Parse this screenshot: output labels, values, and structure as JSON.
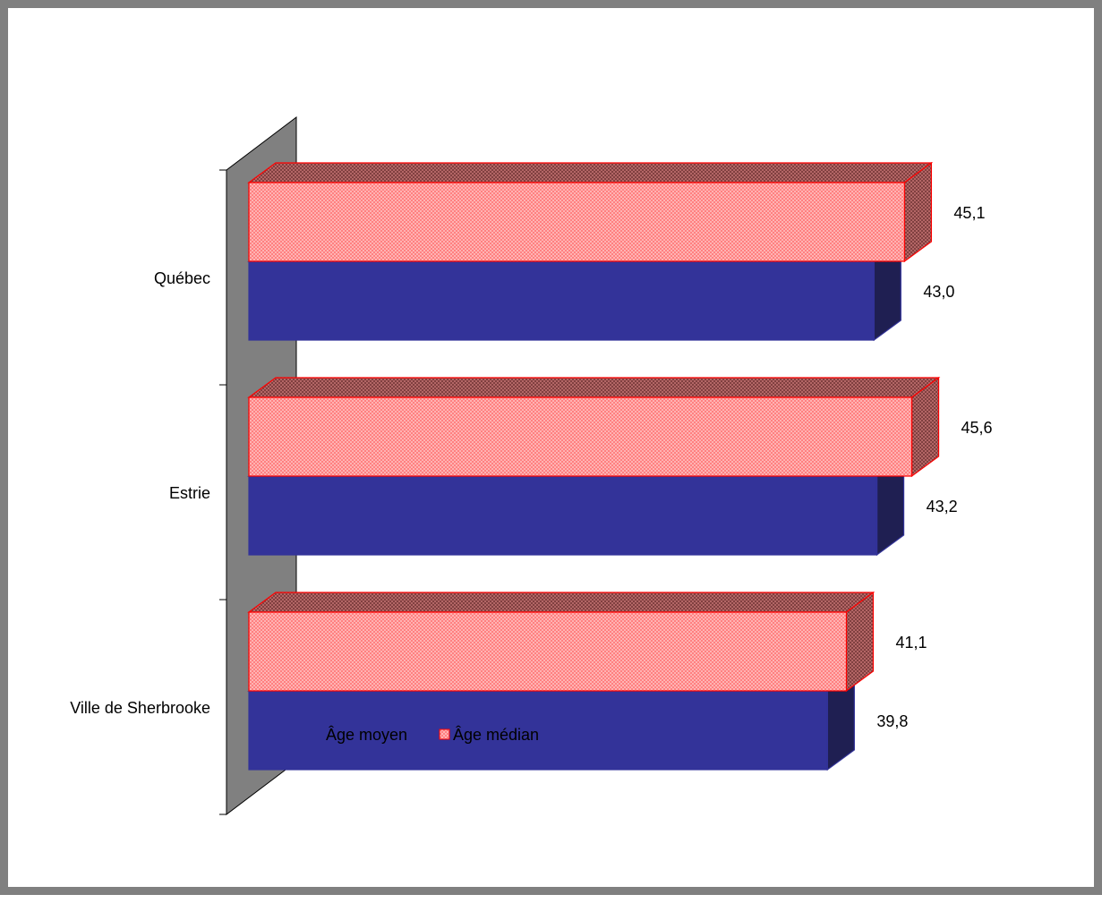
{
  "chart_data": {
    "type": "bar",
    "orientation": "horizontal",
    "three_d": true,
    "categories": [
      "Québec",
      "Estrie",
      "Ville de Sherbrooke"
    ],
    "series": [
      {
        "name": "Âge moyen",
        "values": [
          43.0,
          43.2,
          39.8
        ],
        "labels": [
          "43,0",
          "43,2",
          "39,8"
        ],
        "color": "#333399"
      },
      {
        "name": "Âge médian",
        "values": [
          45.1,
          45.6,
          41.1
        ],
        "labels": [
          "45,1",
          "45,6",
          "41,1"
        ],
        "color": "#ff9999"
      }
    ],
    "legend_position": "bottom",
    "grid": false,
    "title": "",
    "xlabel": "",
    "ylabel": ""
  }
}
